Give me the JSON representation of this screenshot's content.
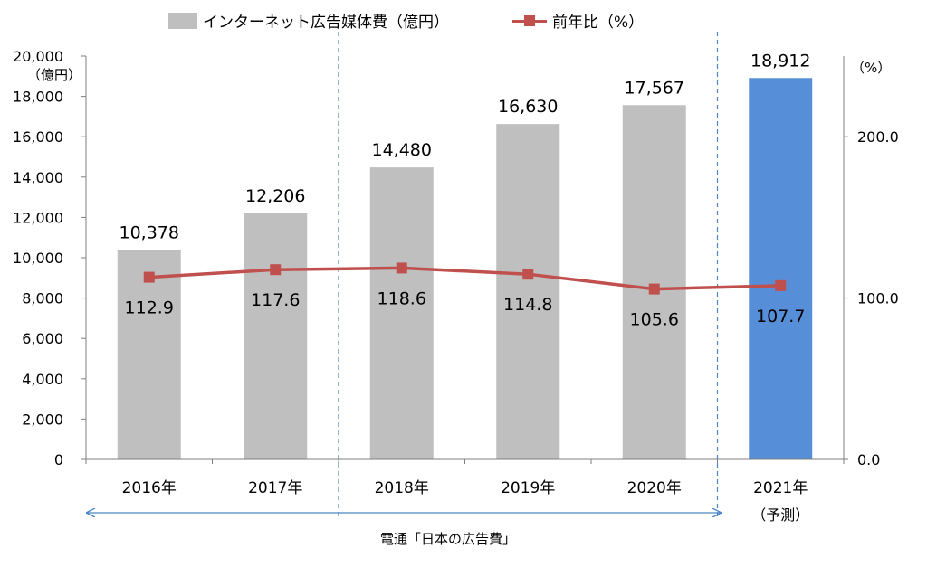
{
  "colors": {
    "bar": "#bfbfbf",
    "bar_forecast": "#568fd8",
    "line": "#c0504d",
    "axis": "#7f7f7f",
    "divider": "#4a86c8",
    "arrow": "#4a86c8"
  },
  "legend": {
    "bar_label": "インターネット広告媒体費（億円）",
    "line_label": "前年比（%）"
  },
  "left_axis": {
    "unit": "（億円）",
    "ticks": [
      "20,000",
      "18,000",
      "16,000",
      "14,000",
      "12,000",
      "10,000",
      "8,000",
      "6,000",
      "4,000",
      "2,000",
      "0"
    ]
  },
  "right_axis": {
    "unit": "（%）",
    "ticks": [
      "200.0",
      "100.0",
      "0.0"
    ]
  },
  "source_note": "電通「日本の広告費」",
  "chart_data": {
    "type": "bar",
    "categories": [
      "2016年",
      "2017年",
      "2018年",
      "2019年",
      "2020年",
      "2021年"
    ],
    "category_sublabels": [
      "",
      "",
      "",
      "",
      "",
      "（予測）"
    ],
    "series": [
      {
        "name": "インターネット広告媒体費（億円）",
        "type": "bar",
        "axis": "left",
        "values": [
          10378,
          12206,
          14480,
          16630,
          17567,
          18912
        ],
        "labels": [
          "10,378",
          "12,206",
          "14,480",
          "16,630",
          "17,567",
          "18,912"
        ],
        "forecast_index": 5
      },
      {
        "name": "前年比（%）",
        "type": "line",
        "axis": "right",
        "values": [
          112.9,
          117.6,
          118.6,
          114.8,
          105.6,
          107.7
        ],
        "labels": [
          "112.9",
          "117.6",
          "118.6",
          "114.8",
          "105.6",
          "107.7"
        ]
      }
    ],
    "ylim_left": [
      0,
      20000
    ],
    "ylim_right": [
      0,
      250
    ],
    "yticks_right": [
      0,
      100,
      200
    ],
    "grid": false,
    "legend_position": "top"
  }
}
